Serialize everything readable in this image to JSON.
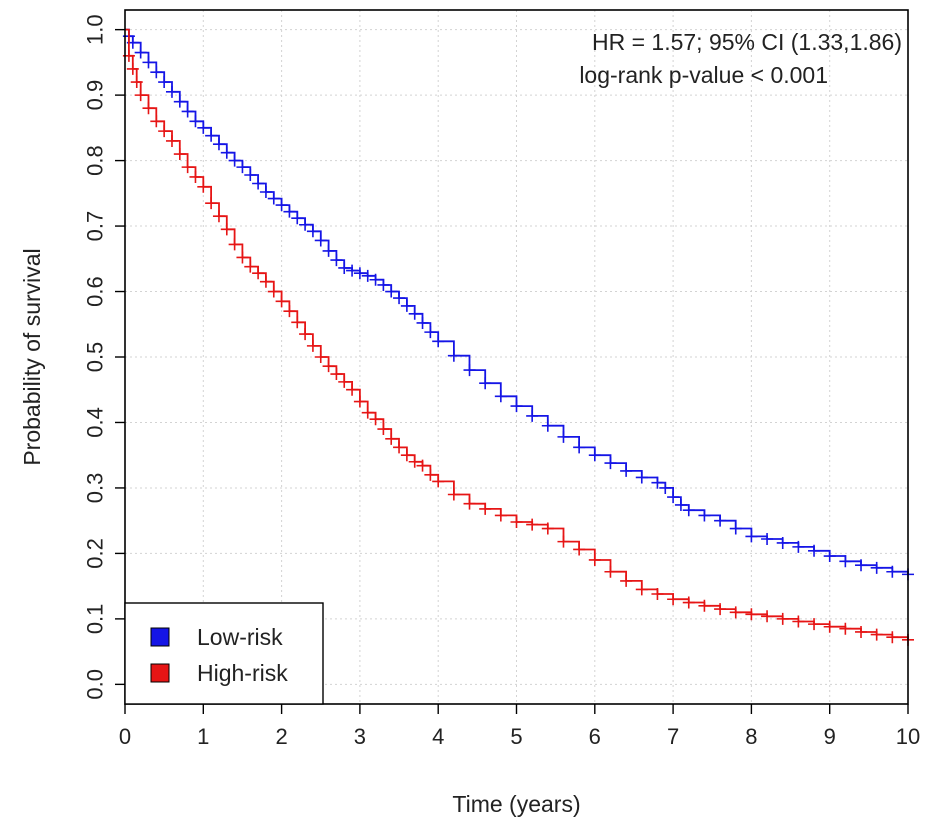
{
  "chart_data": {
    "type": "line",
    "title": "",
    "xlabel": "Time (years)",
    "ylabel": "Probability of survival",
    "xlim": [
      0,
      10
    ],
    "ylim": [
      -0.03,
      1.03
    ],
    "xticks": [
      "0",
      "1",
      "2",
      "3",
      "4",
      "5",
      "6",
      "7",
      "8",
      "9",
      "10"
    ],
    "yticks": [
      "0.0",
      "0.1",
      "0.2",
      "0.3",
      "0.4",
      "0.5",
      "0.6",
      "0.7",
      "0.8",
      "0.9",
      "1.0"
    ],
    "grid": true,
    "legend_position": "bottom-left",
    "annotations": [
      "HR = 1.57; 95% CI (1.33,1.86)",
      "log-rank p-value < 0.001"
    ],
    "series": [
      {
        "name": "Low-risk",
        "color": "#1515e6",
        "step": true,
        "x": [
          0,
          0.05,
          0.1,
          0.2,
          0.3,
          0.4,
          0.5,
          0.6,
          0.7,
          0.8,
          0.9,
          1.0,
          1.1,
          1.2,
          1.3,
          1.4,
          1.5,
          1.6,
          1.7,
          1.8,
          1.9,
          2.0,
          2.1,
          2.2,
          2.3,
          2.4,
          2.5,
          2.6,
          2.7,
          2.8,
          2.9,
          3.0,
          3.1,
          3.2,
          3.3,
          3.4,
          3.5,
          3.6,
          3.7,
          3.8,
          3.9,
          4.0,
          4.2,
          4.4,
          4.6,
          4.8,
          5.0,
          5.2,
          5.4,
          5.6,
          5.8,
          6.0,
          6.2,
          6.4,
          6.6,
          6.8,
          6.9,
          7.0,
          7.1,
          7.2,
          7.4,
          7.6,
          7.8,
          8.0,
          8.2,
          8.4,
          8.6,
          8.8,
          9.0,
          9.2,
          9.4,
          9.6,
          9.8,
          10.0
        ],
        "y": [
          1.0,
          0.99,
          0.98,
          0.965,
          0.95,
          0.935,
          0.92,
          0.905,
          0.89,
          0.875,
          0.86,
          0.85,
          0.838,
          0.825,
          0.812,
          0.8,
          0.79,
          0.778,
          0.765,
          0.752,
          0.742,
          0.732,
          0.722,
          0.712,
          0.702,
          0.692,
          0.678,
          0.662,
          0.648,
          0.636,
          0.632,
          0.628,
          0.624,
          0.618,
          0.61,
          0.6,
          0.59,
          0.578,
          0.566,
          0.552,
          0.538,
          0.524,
          0.502,
          0.48,
          0.46,
          0.44,
          0.425,
          0.41,
          0.395,
          0.378,
          0.362,
          0.35,
          0.338,
          0.326,
          0.316,
          0.308,
          0.3,
          0.286,
          0.274,
          0.266,
          0.258,
          0.25,
          0.238,
          0.226,
          0.222,
          0.216,
          0.21,
          0.204,
          0.196,
          0.188,
          0.182,
          0.178,
          0.172,
          0.168
        ]
      },
      {
        "name": "High-risk",
        "color": "#e61515",
        "step": true,
        "x": [
          0,
          0.05,
          0.1,
          0.15,
          0.2,
          0.3,
          0.4,
          0.5,
          0.6,
          0.7,
          0.8,
          0.9,
          1.0,
          1.1,
          1.2,
          1.3,
          1.4,
          1.5,
          1.6,
          1.7,
          1.8,
          1.9,
          2.0,
          2.1,
          2.2,
          2.3,
          2.4,
          2.5,
          2.6,
          2.7,
          2.8,
          2.9,
          3.0,
          3.1,
          3.2,
          3.3,
          3.4,
          3.5,
          3.6,
          3.7,
          3.8,
          3.9,
          4.0,
          4.2,
          4.4,
          4.6,
          4.8,
          5.0,
          5.2,
          5.4,
          5.6,
          5.8,
          6.0,
          6.2,
          6.4,
          6.6,
          6.8,
          7.0,
          7.2,
          7.4,
          7.6,
          7.8,
          8.0,
          8.2,
          8.4,
          8.6,
          8.8,
          9.0,
          9.2,
          9.4,
          9.6,
          9.8,
          10.0
        ],
        "y": [
          1.0,
          0.96,
          0.94,
          0.92,
          0.9,
          0.88,
          0.86,
          0.845,
          0.83,
          0.81,
          0.79,
          0.775,
          0.76,
          0.735,
          0.715,
          0.695,
          0.672,
          0.652,
          0.638,
          0.628,
          0.615,
          0.6,
          0.585,
          0.57,
          0.553,
          0.535,
          0.517,
          0.5,
          0.486,
          0.474,
          0.462,
          0.45,
          0.432,
          0.415,
          0.405,
          0.39,
          0.375,
          0.362,
          0.35,
          0.34,
          0.334,
          0.32,
          0.31,
          0.29,
          0.276,
          0.268,
          0.258,
          0.248,
          0.244,
          0.238,
          0.218,
          0.206,
          0.19,
          0.172,
          0.158,
          0.145,
          0.138,
          0.13,
          0.125,
          0.12,
          0.115,
          0.11,
          0.107,
          0.104,
          0.1,
          0.096,
          0.092,
          0.088,
          0.085,
          0.08,
          0.076,
          0.072,
          0.068
        ]
      }
    ]
  }
}
